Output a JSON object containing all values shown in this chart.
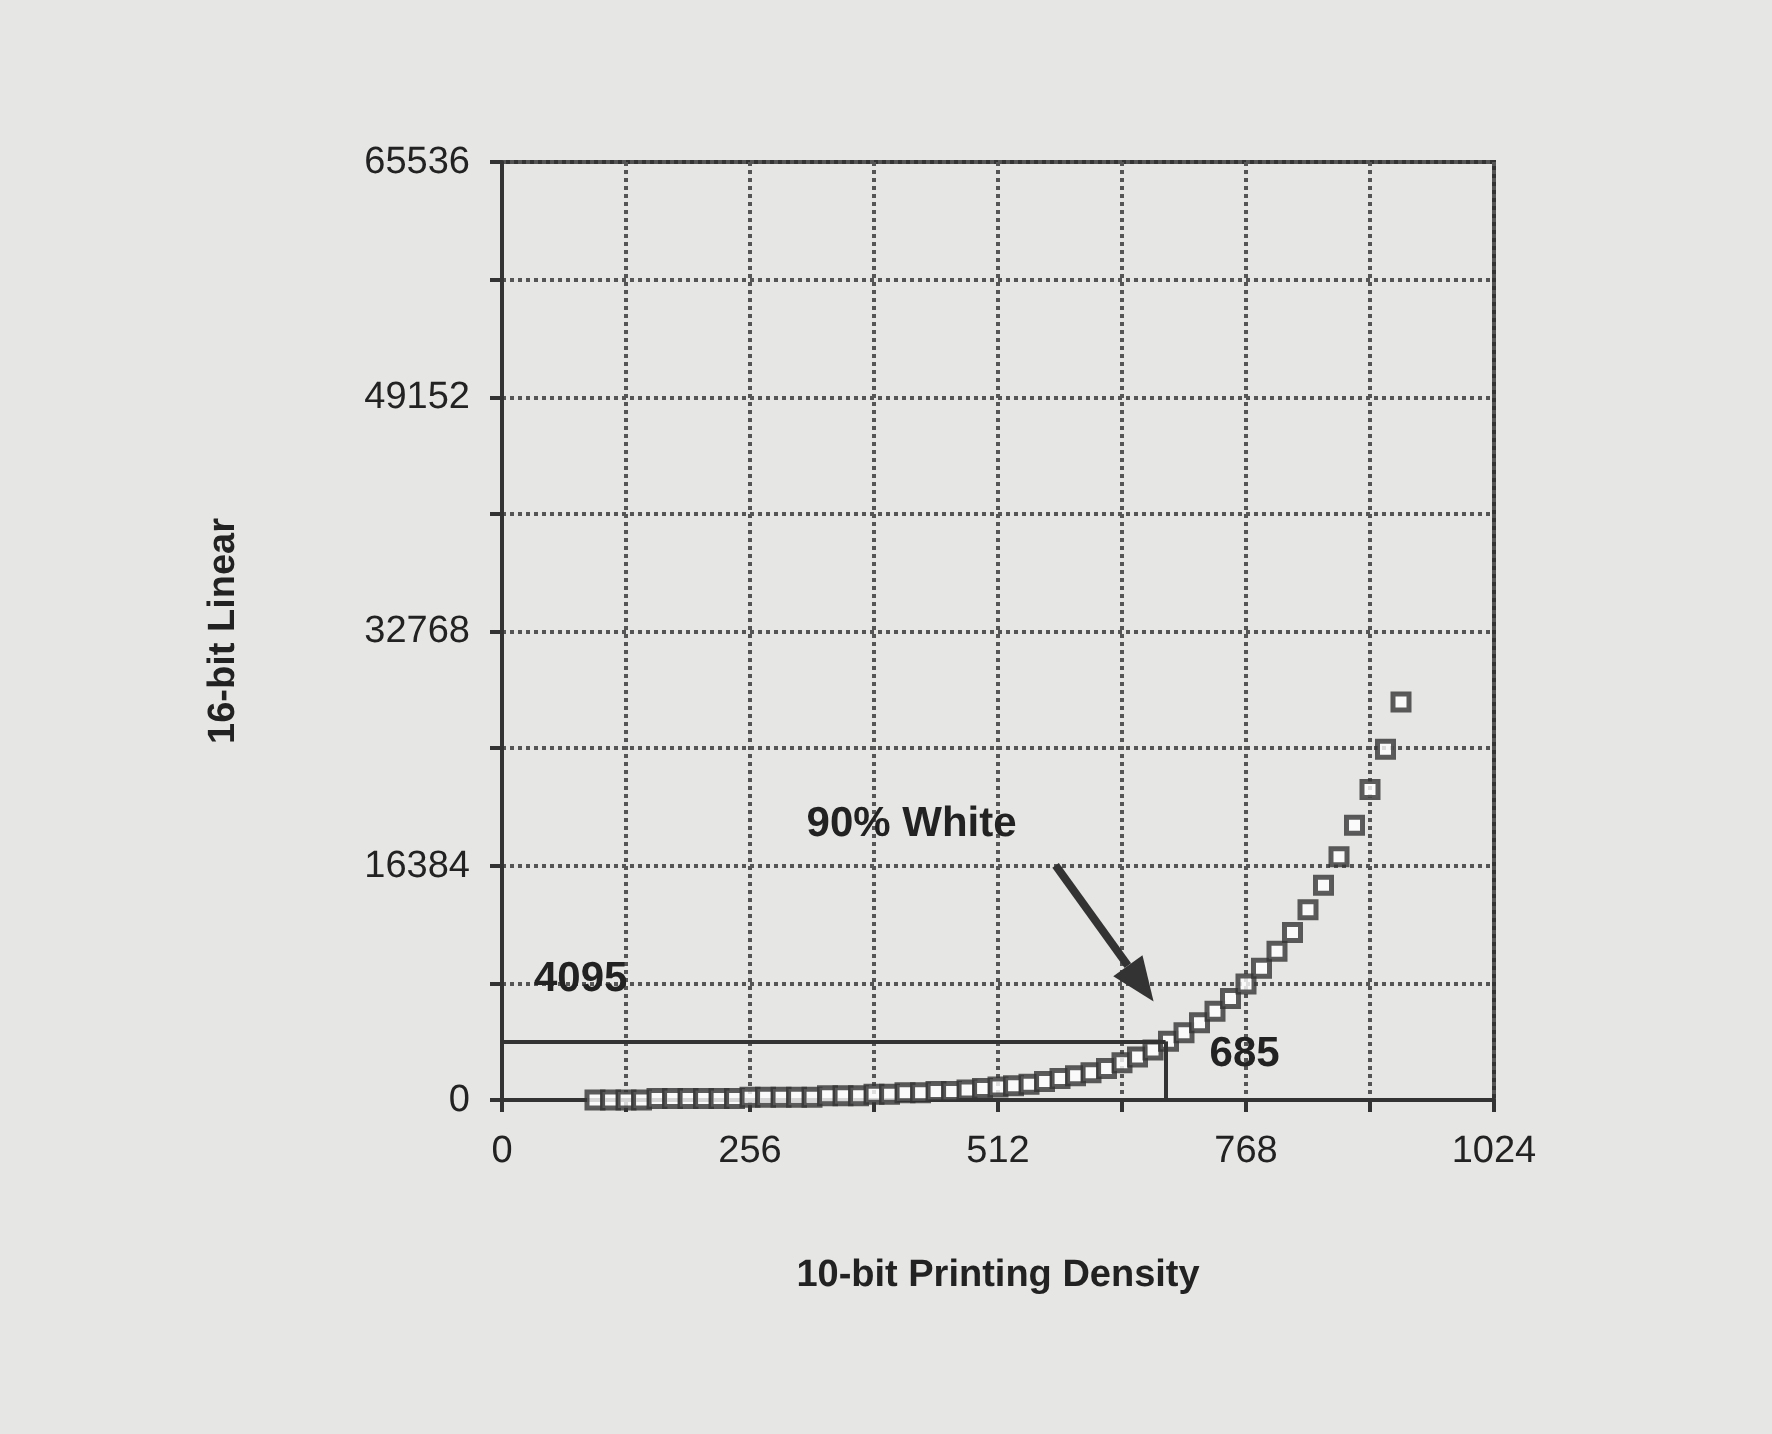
{
  "chart_data": {
    "type": "scatter",
    "xlabel": "10-bit Printing Density",
    "ylabel": "16-bit Linear",
    "x": [
      96,
      112,
      128,
      144,
      160,
      176,
      192,
      208,
      224,
      240,
      256,
      272,
      288,
      304,
      320,
      336,
      352,
      368,
      384,
      400,
      416,
      432,
      448,
      464,
      480,
      496,
      512,
      528,
      544,
      560,
      576,
      592,
      608,
      624,
      640,
      656,
      672,
      688,
      704,
      720,
      736,
      752,
      768,
      784,
      800,
      816,
      832,
      848,
      864,
      880,
      896,
      912,
      928
    ],
    "values": [
      0,
      0,
      0,
      0,
      100,
      100,
      100,
      100,
      100,
      100,
      200,
      200,
      200,
      200,
      200,
      300,
      300,
      300,
      400,
      400,
      500,
      500,
      600,
      600,
      700,
      800,
      900,
      1000,
      1100,
      1300,
      1500,
      1700,
      1900,
      2200,
      2600,
      3000,
      3500,
      4100,
      4700,
      5400,
      6200,
      7100,
      8100,
      9200,
      10400,
      11700,
      13300,
      15000,
      17000,
      19200,
      21700,
      24500,
      27800
    ],
    "color": "#333333",
    "marker": "square",
    "xlim": [
      0,
      1024
    ],
    "xticks": [
      0,
      {
        "value": 128,
        "label": null
      },
      256,
      {
        "value": 384,
        "label": null
      },
      512,
      {
        "value": 640,
        "label": null
      },
      768,
      {
        "value": 896,
        "label": null
      },
      1024
    ],
    "ylim": [
      0,
      65536
    ],
    "yticks": [
      0,
      {
        "value": 8192,
        "label": null
      },
      16384,
      {
        "value": 24576,
        "label": null
      },
      32768,
      {
        "value": 40960,
        "label": null
      },
      49152,
      {
        "value": 57344,
        "label": null
      },
      65536
    ],
    "grid": true,
    "ref_lines": [
      {
        "axis": "y",
        "value": 4095,
        "label": "4095"
      },
      {
        "axis": "x",
        "value": 685,
        "label": "685"
      }
    ],
    "annotations": [
      "90% White"
    ]
  }
}
